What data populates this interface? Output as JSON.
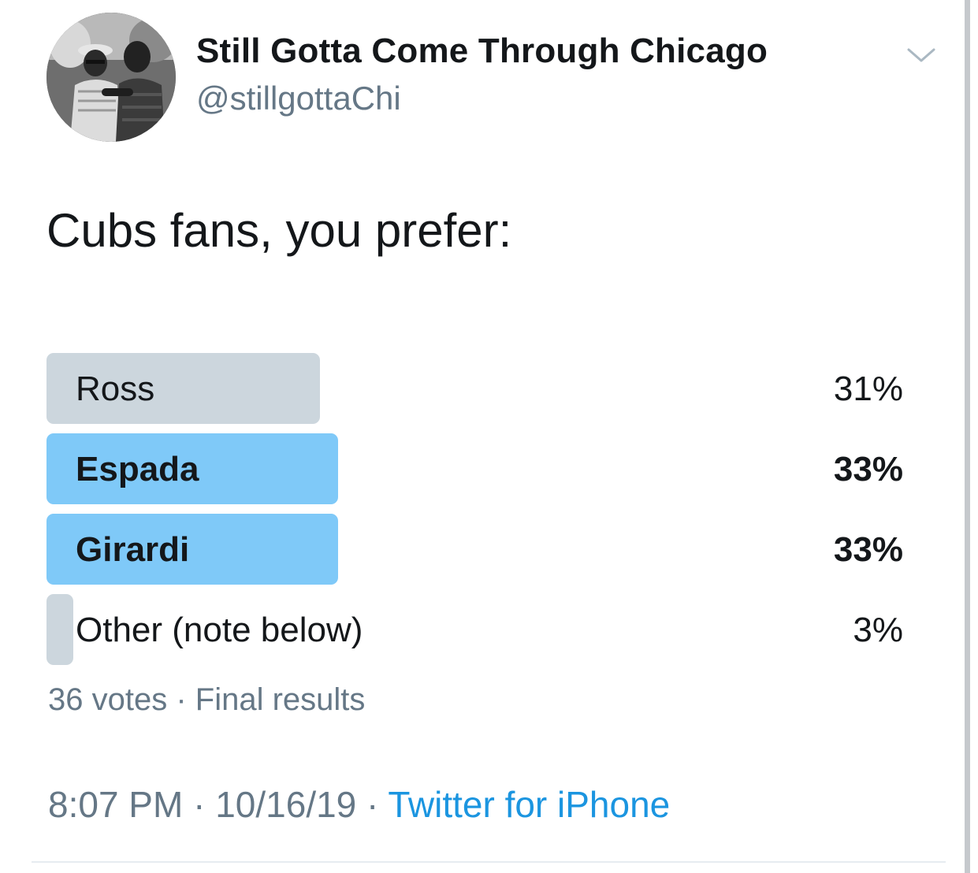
{
  "user": {
    "display_name": "Still Gotta Come Through Chicago",
    "handle": "@stillgottaChi",
    "avatar_icon": "profile-photo",
    "menu_icon": "chevron-down-icon"
  },
  "tweet": {
    "text": "Cubs fans, you prefer:"
  },
  "poll": {
    "options": [
      {
        "label": "Ross",
        "percent_text": "31%",
        "percent": 31,
        "winner": false
      },
      {
        "label": "Espada",
        "percent_text": "33%",
        "percent": 33,
        "winner": true
      },
      {
        "label": "Girardi",
        "percent_text": "33%",
        "percent": 33,
        "winner": true
      },
      {
        "label": "Other (note below)",
        "percent_text": "3%",
        "percent": 3,
        "winner": false
      }
    ],
    "votes": "36 votes",
    "separator": "·",
    "status": "Final results"
  },
  "meta": {
    "time": "8:07 PM",
    "date": "10/16/19",
    "separator": "·",
    "source": "Twitter for iPhone"
  },
  "colors": {
    "winner_bar": "#7fc9f8",
    "other_bar": "#ccd6dd",
    "link": "#1b95e0",
    "secondary_text": "#657786"
  }
}
